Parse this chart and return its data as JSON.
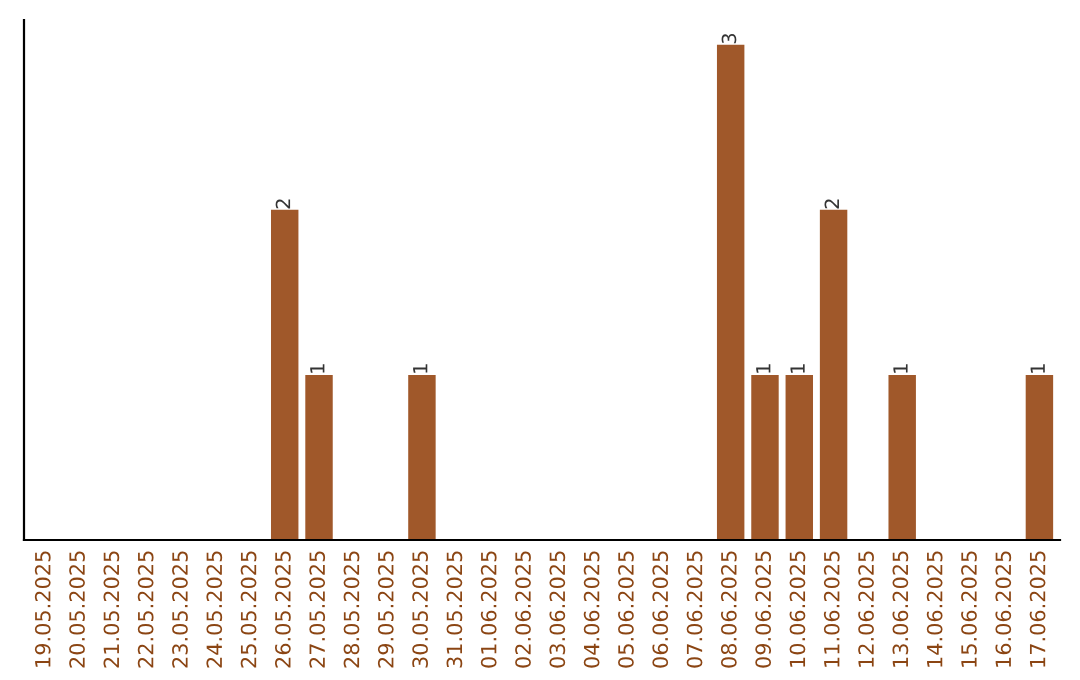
{
  "chart_data": {
    "type": "bar",
    "categories": [
      "19.05.2025",
      "20.05.2025",
      "21.05.2025",
      "22.05.2025",
      "23.05.2025",
      "24.05.2025",
      "25.05.2025",
      "26.05.2025",
      "27.05.2025",
      "28.05.2025",
      "29.05.2025",
      "30.05.2025",
      "31.05.2025",
      "01.06.2025",
      "02.06.2025",
      "03.06.2025",
      "04.06.2025",
      "05.06.2025",
      "06.06.2025",
      "07.06.2025",
      "08.06.2025",
      "09.06.2025",
      "10.06.2025",
      "11.06.2025",
      "12.06.2025",
      "13.06.2025",
      "14.06.2025",
      "15.06.2025",
      "16.06.2025",
      "17.06.2025"
    ],
    "values": [
      0,
      0,
      0,
      0,
      0,
      0,
      0,
      2,
      1,
      0,
      0,
      1,
      0,
      0,
      0,
      0,
      0,
      0,
      0,
      0,
      3,
      1,
      1,
      2,
      0,
      1,
      0,
      0,
      0,
      1
    ],
    "value_labels": [
      null,
      null,
      null,
      null,
      null,
      null,
      null,
      "2",
      "1",
      null,
      null,
      "1",
      null,
      null,
      null,
      null,
      null,
      null,
      null,
      null,
      "3",
      "1",
      "1",
      "2",
      null,
      "1",
      null,
      null,
      null,
      "1"
    ],
    "color": "#a0582a",
    "grid": false,
    "legend": false
  }
}
